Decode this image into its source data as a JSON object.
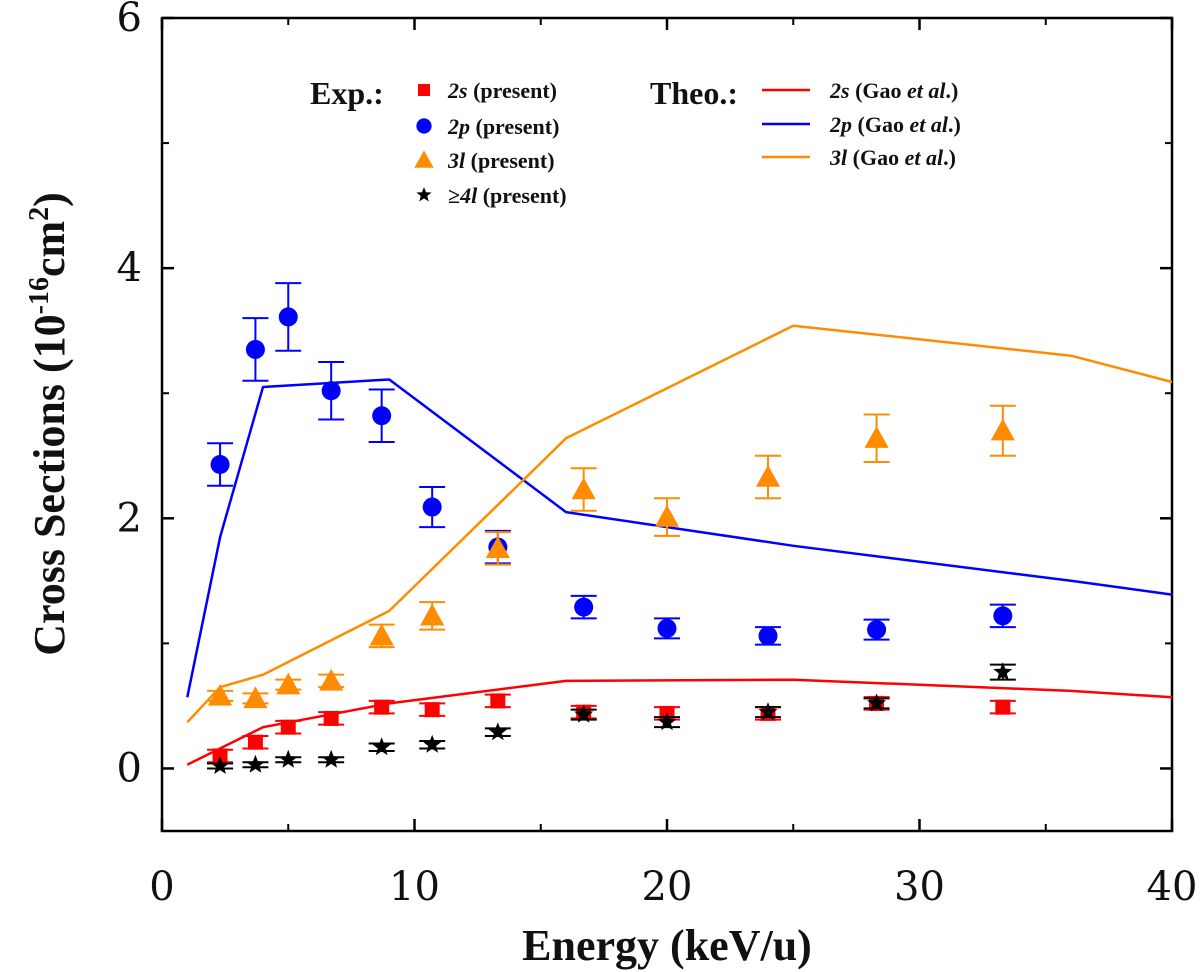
{
  "chart_data": {
    "type": "scatter",
    "xlabel": "Energy (keV/u)",
    "ylabel": "Cross Sections (10",
    "ylabel_exponent": "-16",
    "ylabel_unit": "cm",
    "ylabel_unit_exponent": "2",
    "ylabel_close": ")",
    "xlim": [
      0,
      40
    ],
    "ylim": [
      -0.5,
      6
    ],
    "xticks": [
      0,
      10,
      20,
      30,
      40
    ],
    "yticks": [
      0,
      2,
      4,
      6
    ],
    "xtick_labels": [
      "0",
      "10",
      "20",
      "30",
      "40"
    ],
    "ytick_labels": [
      "0",
      "2",
      "4",
      "6"
    ],
    "legend": {
      "exp_header": "Exp.:",
      "theo_header": "Theo.:",
      "exp_entries": [
        {
          "state": "2s",
          "suffix": " (present)"
        },
        {
          "state": "2p",
          "suffix": " (present)"
        },
        {
          "state": "3l",
          "suffix": " (present)"
        },
        {
          "prefix": "≥",
          "state": "4l",
          "suffix": " (present)"
        }
      ],
      "theo_entries": [
        {
          "state": "2s",
          "mid": " (Gao ",
          "etal": "et al",
          "end": ".)"
        },
        {
          "state": "2p",
          "mid": " (Gao ",
          "etal": "et al",
          "end": ".)"
        },
        {
          "state": "3l",
          "mid": " (Gao ",
          "etal": "et al",
          "end": ".)"
        }
      ]
    },
    "experimental_series": [
      {
        "name": "2s (present)",
        "marker": "square",
        "color": "#ff0000",
        "points": [
          {
            "x": 2.3,
            "y": 0.1,
            "err": 0.05
          },
          {
            "x": 3.7,
            "y": 0.21,
            "err": 0.05
          },
          {
            "x": 5.0,
            "y": 0.33,
            "err": 0.05
          },
          {
            "x": 6.7,
            "y": 0.4,
            "err": 0.05
          },
          {
            "x": 8.7,
            "y": 0.49,
            "err": 0.05
          },
          {
            "x": 10.7,
            "y": 0.47,
            "err": 0.05
          },
          {
            "x": 13.3,
            "y": 0.54,
            "err": 0.05
          },
          {
            "x": 16.7,
            "y": 0.45,
            "err": 0.05
          },
          {
            "x": 20.0,
            "y": 0.44,
            "err": 0.05
          },
          {
            "x": 24.0,
            "y": 0.44,
            "err": 0.05
          },
          {
            "x": 28.3,
            "y": 0.52,
            "err": 0.05
          },
          {
            "x": 33.3,
            "y": 0.49,
            "err": 0.05
          }
        ]
      },
      {
        "name": "2p (present)",
        "marker": "circle",
        "color": "#0000ff",
        "points": [
          {
            "x": 2.3,
            "y": 2.43,
            "err": 0.17
          },
          {
            "x": 3.7,
            "y": 3.35,
            "err": 0.25
          },
          {
            "x": 5.0,
            "y": 3.61,
            "err": 0.27
          },
          {
            "x": 6.7,
            "y": 3.02,
            "err": 0.23
          },
          {
            "x": 8.7,
            "y": 2.82,
            "err": 0.21
          },
          {
            "x": 10.7,
            "y": 2.09,
            "err": 0.16
          },
          {
            "x": 13.3,
            "y": 1.77,
            "err": 0.13
          },
          {
            "x": 16.7,
            "y": 1.29,
            "err": 0.09
          },
          {
            "x": 20.0,
            "y": 1.12,
            "err": 0.08
          },
          {
            "x": 24.0,
            "y": 1.06,
            "err": 0.07
          },
          {
            "x": 28.3,
            "y": 1.11,
            "err": 0.08
          },
          {
            "x": 33.3,
            "y": 1.22,
            "err": 0.09
          }
        ]
      },
      {
        "name": "3l (present)",
        "marker": "triangle",
        "color": "#ff8c00",
        "points": [
          {
            "x": 2.3,
            "y": 0.58,
            "err": 0.04
          },
          {
            "x": 3.7,
            "y": 0.56,
            "err": 0.04
          },
          {
            "x": 5.0,
            "y": 0.67,
            "err": 0.04
          },
          {
            "x": 6.7,
            "y": 0.7,
            "err": 0.05
          },
          {
            "x": 8.7,
            "y": 1.06,
            "err": 0.09
          },
          {
            "x": 10.7,
            "y": 1.22,
            "err": 0.11
          },
          {
            "x": 13.3,
            "y": 1.76,
            "err": 0.13
          },
          {
            "x": 16.7,
            "y": 2.23,
            "err": 0.17
          },
          {
            "x": 20.0,
            "y": 2.01,
            "err": 0.15
          },
          {
            "x": 24.0,
            "y": 2.33,
            "err": 0.17
          },
          {
            "x": 28.3,
            "y": 2.64,
            "err": 0.19
          },
          {
            "x": 33.3,
            "y": 2.7,
            "err": 0.2
          }
        ]
      },
      {
        "name": "≥4l (present)",
        "marker": "star",
        "color": "#000000",
        "points": [
          {
            "x": 2.3,
            "y": 0.02,
            "err": 0.02
          },
          {
            "x": 3.7,
            "y": 0.03,
            "err": 0.02
          },
          {
            "x": 5.0,
            "y": 0.07,
            "err": 0.02
          },
          {
            "x": 6.7,
            "y": 0.07,
            "err": 0.02
          },
          {
            "x": 8.7,
            "y": 0.17,
            "err": 0.03
          },
          {
            "x": 10.7,
            "y": 0.19,
            "err": 0.03
          },
          {
            "x": 13.3,
            "y": 0.29,
            "err": 0.03
          },
          {
            "x": 16.7,
            "y": 0.43,
            "err": 0.04
          },
          {
            "x": 20.0,
            "y": 0.37,
            "err": 0.04
          },
          {
            "x": 24.0,
            "y": 0.45,
            "err": 0.04
          },
          {
            "x": 28.3,
            "y": 0.52,
            "err": 0.04
          },
          {
            "x": 33.3,
            "y": 0.77,
            "err": 0.06
          }
        ]
      }
    ],
    "theory_series": [
      {
        "name": "2s (Gao et al.)",
        "color": "#ff0000",
        "x": [
          1,
          4,
          9,
          16,
          25,
          36,
          40
        ],
        "y": [
          0.03,
          0.33,
          0.52,
          0.7,
          0.71,
          0.62,
          0.57
        ]
      },
      {
        "name": "2p (Gao et al.)",
        "color": "#0000ff",
        "x": [
          1,
          2.3,
          4,
          9,
          16,
          25,
          36,
          40
        ],
        "y": [
          0.57,
          1.85,
          3.05,
          3.11,
          2.05,
          1.78,
          1.5,
          1.39
        ]
      },
      {
        "name": "3l (Gao et al.)",
        "color": "#ff8c00",
        "x": [
          1,
          2.3,
          4,
          9,
          16,
          25,
          36,
          40
        ],
        "y": [
          0.37,
          0.65,
          0.75,
          1.26,
          2.64,
          3.54,
          3.3,
          3.09
        ]
      }
    ]
  }
}
